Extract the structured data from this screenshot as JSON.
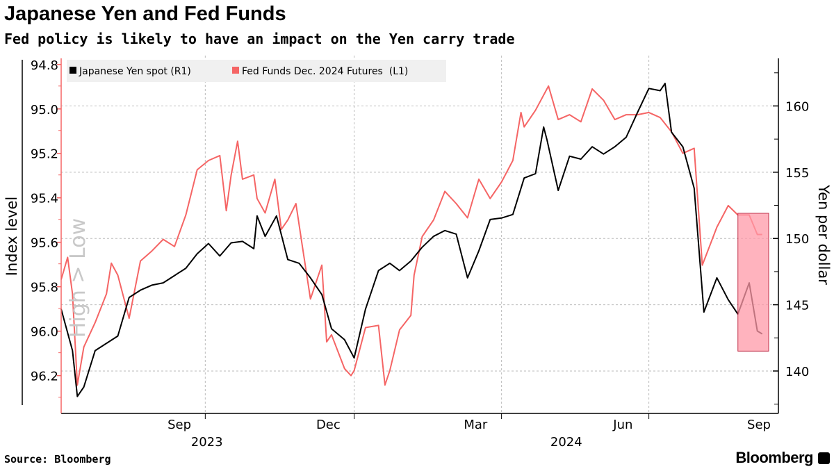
{
  "header": {
    "title": "Japanese Yen and Fed Funds",
    "subtitle": "Fed policy is likely to have an impact on the Yen carry trade"
  },
  "footer": {
    "source": "Source: Bloomberg",
    "brand": "Bloomberg"
  },
  "chart_data": {
    "type": "line",
    "title": "Japanese Yen and Fed Funds",
    "x_origin": "2023-07-04",
    "x_unit": "days since origin",
    "x_ticks": [
      {
        "label": "Sep",
        "day": 73
      },
      {
        "label": "Dec",
        "day": 165
      },
      {
        "label": "Mar",
        "day": 256
      },
      {
        "label": "Jun",
        "day": 347
      },
      {
        "label": "Sep",
        "day": 431
      }
    ],
    "x_gridlines_days": [
      89,
      181,
      272,
      363
    ],
    "year_labels": [
      {
        "label": "2023",
        "day": 90
      },
      {
        "label": "2024",
        "day": 312
      }
    ],
    "xlim": [
      0,
      437
    ],
    "left_axis": {
      "label": "Index level",
      "annotation": "High > Low",
      "inverted": true,
      "range": [
        94.76,
        96.37
      ],
      "ticks": [
        "94.8",
        "95.0",
        "95.2",
        "95.4",
        "95.6",
        "95.8",
        "96.0",
        "96.2"
      ],
      "color": "#f56565"
    },
    "right_axis": {
      "label": "Yen per dollar",
      "range": [
        136.8,
        163.8
      ],
      "ticks": [
        "140",
        "145",
        "150",
        "155",
        "160"
      ]
    },
    "legend": {
      "placement": "top-left"
    },
    "series": [
      {
        "name": "Japanese Yen spot (R1)",
        "axis": "right",
        "color": "#000000",
        "points": [
          [
            0,
            144.67
          ],
          [
            7,
            141.54
          ],
          [
            10,
            138.08
          ],
          [
            14,
            138.79
          ],
          [
            21,
            141.54
          ],
          [
            28,
            142.09
          ],
          [
            35,
            142.64
          ],
          [
            42,
            145.55
          ],
          [
            49,
            146.1
          ],
          [
            56,
            146.48
          ],
          [
            63,
            146.65
          ],
          [
            70,
            147.2
          ],
          [
            77,
            147.75
          ],
          [
            84,
            148.85
          ],
          [
            91,
            149.62
          ],
          [
            98,
            148.68
          ],
          [
            105,
            149.67
          ],
          [
            112,
            149.78
          ],
          [
            119,
            149.23
          ],
          [
            121,
            151.7
          ],
          [
            126,
            150.16
          ],
          [
            133,
            151.7
          ],
          [
            140,
            148.41
          ],
          [
            147,
            148.13
          ],
          [
            154,
            147.03
          ],
          [
            161,
            145.77
          ],
          [
            167,
            143.19
          ],
          [
            175,
            142.36
          ],
          [
            181,
            140.99
          ],
          [
            188,
            144.67
          ],
          [
            196,
            147.58
          ],
          [
            203,
            148.13
          ],
          [
            209,
            147.58
          ],
          [
            216,
            148.3
          ],
          [
            223,
            149.34
          ],
          [
            230,
            150.16
          ],
          [
            237,
            150.6
          ],
          [
            244,
            150.33
          ],
          [
            251,
            147.03
          ],
          [
            258,
            149.07
          ],
          [
            265,
            151.43
          ],
          [
            272,
            151.54
          ],
          [
            279,
            151.81
          ],
          [
            286,
            154.56
          ],
          [
            293,
            154.89
          ],
          [
            298,
            158.41
          ],
          [
            300,
            157.47
          ],
          [
            307,
            153.63
          ],
          [
            314,
            156.21
          ],
          [
            321,
            155.99
          ],
          [
            328,
            156.92
          ],
          [
            335,
            156.37
          ],
          [
            342,
            156.92
          ],
          [
            349,
            157.64
          ],
          [
            356,
            159.51
          ],
          [
            363,
            161.32
          ],
          [
            370,
            161.15
          ],
          [
            373,
            161.7
          ],
          [
            377,
            158.02
          ],
          [
            384,
            156.92
          ],
          [
            391,
            153.79
          ],
          [
            397,
            144.45
          ],
          [
            405,
            147.03
          ],
          [
            412,
            145.38
          ],
          [
            418,
            144.29
          ],
          [
            425,
            146.65
          ],
          [
            430,
            143.02
          ],
          [
            433,
            142.8
          ]
        ]
      },
      {
        "name": "Fed Funds Dec. 2024 Futures  (L1)",
        "axis": "left",
        "color": "#f56565",
        "points": [
          [
            0,
            95.768
          ],
          [
            4,
            95.668
          ],
          [
            7,
            95.832
          ],
          [
            10,
            96.242
          ],
          [
            14,
            96.071
          ],
          [
            21,
            95.961
          ],
          [
            28,
            95.832
          ],
          [
            31,
            95.694
          ],
          [
            35,
            95.748
          ],
          [
            42,
            95.942
          ],
          [
            49,
            95.684
          ],
          [
            56,
            95.639
          ],
          [
            63,
            95.587
          ],
          [
            70,
            95.619
          ],
          [
            77,
            95.477
          ],
          [
            84,
            95.274
          ],
          [
            91,
            95.232
          ],
          [
            98,
            95.21
          ],
          [
            102,
            95.458
          ],
          [
            105,
            95.297
          ],
          [
            109,
            95.145
          ],
          [
            112,
            95.316
          ],
          [
            119,
            95.297
          ],
          [
            121,
            95.403
          ],
          [
            126,
            95.468
          ],
          [
            132,
            95.316
          ],
          [
            136,
            95.542
          ],
          [
            140,
            95.5
          ],
          [
            145,
            95.426
          ],
          [
            149,
            95.619
          ],
          [
            154,
            95.855
          ],
          [
            161,
            95.703
          ],
          [
            164,
            96.048
          ],
          [
            167,
            96.016
          ],
          [
            175,
            96.168
          ],
          [
            179,
            96.2
          ],
          [
            181,
            96.177
          ],
          [
            188,
            95.984
          ],
          [
            196,
            95.974
          ],
          [
            200,
            96.242
          ],
          [
            203,
            96.177
          ],
          [
            209,
            95.994
          ],
          [
            216,
            95.929
          ],
          [
            218,
            95.748
          ],
          [
            223,
            95.574
          ],
          [
            230,
            95.5
          ],
          [
            237,
            95.371
          ],
          [
            244,
            95.426
          ],
          [
            251,
            95.49
          ],
          [
            258,
            95.316
          ],
          [
            265,
            95.403
          ],
          [
            272,
            95.329
          ],
          [
            279,
            95.232
          ],
          [
            284,
            95.016
          ],
          [
            286,
            95.081
          ],
          [
            293,
            95.006
          ],
          [
            301,
            94.897
          ],
          [
            307,
            95.048
          ],
          [
            314,
            95.026
          ],
          [
            321,
            95.058
          ],
          [
            328,
            94.91
          ],
          [
            335,
            94.961
          ],
          [
            342,
            95.048
          ],
          [
            349,
            95.026
          ],
          [
            356,
            95.026
          ],
          [
            363,
            95.016
          ],
          [
            370,
            95.039
          ],
          [
            377,
            95.103
          ],
          [
            384,
            95.2
          ],
          [
            391,
            95.177
          ],
          [
            396,
            95.703
          ],
          [
            405,
            95.532
          ],
          [
            412,
            95.435
          ],
          [
            418,
            95.477
          ],
          [
            425,
            95.477
          ],
          [
            430,
            95.565
          ],
          [
            433,
            95.565
          ]
        ]
      }
    ],
    "highlight": {
      "x_range_days": [
        418,
        437
      ],
      "right_axis_range": [
        141.5,
        151.9
      ],
      "color": "#ff9aa8"
    }
  }
}
